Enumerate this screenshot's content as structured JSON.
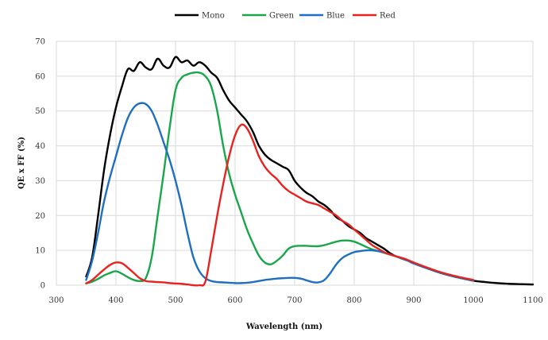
{
  "chart_data": {
    "type": "line",
    "xlabel": "Wavelength (nm)",
    "ylabel": "QE x FF (%)",
    "xlim": [
      300,
      1100
    ],
    "ylim": [
      0,
      70
    ],
    "xticks": [
      300,
      400,
      500,
      600,
      700,
      800,
      900,
      1000,
      1100
    ],
    "yticks": [
      0,
      10,
      20,
      30,
      40,
      50,
      60,
      70
    ],
    "grid": true,
    "legend_position": "top-center",
    "series": [
      {
        "name": "Mono",
        "color": "#000000",
        "points": [
          [
            350,
            2.5
          ],
          [
            360,
            8
          ],
          [
            370,
            20
          ],
          [
            380,
            33
          ],
          [
            390,
            43
          ],
          [
            400,
            51
          ],
          [
            410,
            57
          ],
          [
            420,
            62
          ],
          [
            430,
            61.5
          ],
          [
            440,
            64
          ],
          [
            450,
            62.5
          ],
          [
            460,
            62
          ],
          [
            470,
            65
          ],
          [
            480,
            63
          ],
          [
            490,
            62.5
          ],
          [
            500,
            65.5
          ],
          [
            510,
            64
          ],
          [
            520,
            64.5
          ],
          [
            530,
            63
          ],
          [
            540,
            64
          ],
          [
            550,
            63
          ],
          [
            560,
            61
          ],
          [
            570,
            59.5
          ],
          [
            580,
            56
          ],
          [
            590,
            53
          ],
          [
            600,
            51
          ],
          [
            610,
            49
          ],
          [
            620,
            47
          ],
          [
            630,
            44
          ],
          [
            640,
            40
          ],
          [
            650,
            37.5
          ],
          [
            660,
            36
          ],
          [
            670,
            35
          ],
          [
            680,
            34
          ],
          [
            690,
            33
          ],
          [
            700,
            30
          ],
          [
            710,
            28
          ],
          [
            720,
            26.5
          ],
          [
            730,
            25.5
          ],
          [
            740,
            24
          ],
          [
            750,
            23
          ],
          [
            760,
            21.5
          ],
          [
            770,
            19.5
          ],
          [
            780,
            18.5
          ],
          [
            790,
            17
          ],
          [
            800,
            16
          ],
          [
            810,
            15
          ],
          [
            820,
            13.5
          ],
          [
            830,
            12.5
          ],
          [
            840,
            11.5
          ],
          [
            850,
            10.5
          ],
          [
            860,
            9.2
          ],
          [
            870,
            8.3
          ],
          [
            880,
            7.8
          ],
          [
            890,
            7.2
          ],
          [
            900,
            6.3
          ],
          [
            920,
            5
          ],
          [
            940,
            3.8
          ],
          [
            960,
            2.8
          ],
          [
            980,
            2
          ],
          [
            1000,
            1.3
          ],
          [
            1020,
            0.9
          ],
          [
            1040,
            0.6
          ],
          [
            1060,
            0.4
          ],
          [
            1080,
            0.3
          ],
          [
            1100,
            0.2
          ]
        ]
      },
      {
        "name": "Green",
        "color": "#1aa64a",
        "points": [
          [
            350,
            0.5
          ],
          [
            360,
            1
          ],
          [
            370,
            1.8
          ],
          [
            380,
            2.8
          ],
          [
            390,
            3.5
          ],
          [
            400,
            4
          ],
          [
            410,
            3.3
          ],
          [
            420,
            2.3
          ],
          [
            430,
            1.5
          ],
          [
            440,
            1.2
          ],
          [
            450,
            2
          ],
          [
            460,
            8
          ],
          [
            470,
            20
          ],
          [
            480,
            32
          ],
          [
            490,
            45
          ],
          [
            500,
            56
          ],
          [
            510,
            59.5
          ],
          [
            520,
            60.5
          ],
          [
            530,
            61
          ],
          [
            540,
            61
          ],
          [
            550,
            60
          ],
          [
            560,
            57
          ],
          [
            570,
            50
          ],
          [
            580,
            40
          ],
          [
            590,
            32
          ],
          [
            600,
            26
          ],
          [
            610,
            21
          ],
          [
            620,
            16
          ],
          [
            630,
            12
          ],
          [
            640,
            8.5
          ],
          [
            650,
            6.5
          ],
          [
            660,
            6
          ],
          [
            670,
            7
          ],
          [
            680,
            8.5
          ],
          [
            690,
            10.5
          ],
          [
            700,
            11.2
          ],
          [
            710,
            11.3
          ],
          [
            720,
            11.3
          ],
          [
            730,
            11.2
          ],
          [
            740,
            11.2
          ],
          [
            750,
            11.5
          ],
          [
            760,
            12
          ],
          [
            770,
            12.5
          ],
          [
            780,
            12.8
          ],
          [
            790,
            12.8
          ],
          [
            800,
            12.5
          ],
          [
            810,
            11.8
          ],
          [
            820,
            11
          ],
          [
            830,
            10.3
          ],
          [
            840,
            9.8
          ],
          [
            850,
            9.3
          ],
          [
            860,
            8.8
          ],
          [
            870,
            8.3
          ],
          [
            880,
            7.8
          ],
          [
            890,
            7.2
          ],
          [
            900,
            6.5
          ],
          [
            920,
            5
          ],
          [
            940,
            3.8
          ],
          [
            960,
            2.8
          ],
          [
            980,
            2
          ],
          [
            1000,
            1.3
          ]
        ]
      },
      {
        "name": "Blue",
        "color": "#1f6fc0",
        "points": [
          [
            350,
            1.5
          ],
          [
            360,
            7
          ],
          [
            370,
            15
          ],
          [
            380,
            24
          ],
          [
            390,
            31
          ],
          [
            400,
            37
          ],
          [
            410,
            43
          ],
          [
            420,
            48
          ],
          [
            430,
            51
          ],
          [
            440,
            52.2
          ],
          [
            450,
            52
          ],
          [
            460,
            50
          ],
          [
            470,
            46
          ],
          [
            480,
            41
          ],
          [
            490,
            36
          ],
          [
            500,
            30
          ],
          [
            510,
            23
          ],
          [
            520,
            15
          ],
          [
            530,
            8
          ],
          [
            540,
            4
          ],
          [
            550,
            2
          ],
          [
            560,
            1.2
          ],
          [
            570,
            0.9
          ],
          [
            580,
            0.8
          ],
          [
            590,
            0.7
          ],
          [
            600,
            0.6
          ],
          [
            610,
            0.6
          ],
          [
            620,
            0.7
          ],
          [
            630,
            0.9
          ],
          [
            640,
            1.2
          ],
          [
            650,
            1.5
          ],
          [
            660,
            1.7
          ],
          [
            670,
            1.9
          ],
          [
            680,
            2
          ],
          [
            690,
            2.1
          ],
          [
            700,
            2.1
          ],
          [
            710,
            1.9
          ],
          [
            720,
            1.4
          ],
          [
            730,
            0.9
          ],
          [
            740,
            0.8
          ],
          [
            750,
            1.5
          ],
          [
            760,
            3.5
          ],
          [
            770,
            6
          ],
          [
            780,
            7.8
          ],
          [
            790,
            8.8
          ],
          [
            800,
            9.5
          ],
          [
            810,
            9.8
          ],
          [
            820,
            10
          ],
          [
            830,
            10
          ],
          [
            840,
            9.8
          ],
          [
            850,
            9.4
          ],
          [
            860,
            8.8
          ],
          [
            870,
            8.3
          ],
          [
            880,
            7.6
          ],
          [
            890,
            7
          ],
          [
            900,
            6.2
          ],
          [
            920,
            5
          ],
          [
            940,
            3.8
          ],
          [
            960,
            2.8
          ],
          [
            980,
            2
          ],
          [
            1000,
            1.3
          ]
        ]
      },
      {
        "name": "Red",
        "color": "#e8231f",
        "points": [
          [
            350,
            0.5
          ],
          [
            360,
            1.5
          ],
          [
            370,
            3
          ],
          [
            380,
            4.5
          ],
          [
            390,
            5.8
          ],
          [
            400,
            6.5
          ],
          [
            410,
            6.3
          ],
          [
            420,
            5
          ],
          [
            430,
            3.5
          ],
          [
            440,
            2
          ],
          [
            450,
            1.2
          ],
          [
            460,
            1
          ],
          [
            470,
            0.9
          ],
          [
            480,
            0.8
          ],
          [
            490,
            0.6
          ],
          [
            500,
            0.5
          ],
          [
            510,
            0.4
          ],
          [
            520,
            0.2
          ],
          [
            530,
            0
          ],
          [
            540,
            0
          ],
          [
            550,
            1
          ],
          [
            560,
            10
          ],
          [
            570,
            20
          ],
          [
            580,
            29
          ],
          [
            590,
            37
          ],
          [
            600,
            43
          ],
          [
            610,
            46
          ],
          [
            620,
            45
          ],
          [
            630,
            41.5
          ],
          [
            640,
            37
          ],
          [
            650,
            34
          ],
          [
            660,
            32
          ],
          [
            670,
            30.5
          ],
          [
            680,
            28.5
          ],
          [
            690,
            27
          ],
          [
            700,
            26
          ],
          [
            710,
            25
          ],
          [
            720,
            24
          ],
          [
            730,
            23.5
          ],
          [
            740,
            23
          ],
          [
            750,
            22
          ],
          [
            760,
            21
          ],
          [
            770,
            20
          ],
          [
            780,
            18.5
          ],
          [
            790,
            17.5
          ],
          [
            800,
            16
          ],
          [
            810,
            14.5
          ],
          [
            820,
            13
          ],
          [
            830,
            11.5
          ],
          [
            840,
            10.5
          ],
          [
            850,
            9.5
          ],
          [
            860,
            8.8
          ],
          [
            870,
            8.3
          ],
          [
            880,
            7.8
          ],
          [
            890,
            7.2
          ],
          [
            900,
            6.5
          ],
          [
            920,
            5.2
          ],
          [
            940,
            4
          ],
          [
            960,
            3
          ],
          [
            980,
            2.2
          ],
          [
            1000,
            1.5
          ]
        ]
      }
    ]
  }
}
